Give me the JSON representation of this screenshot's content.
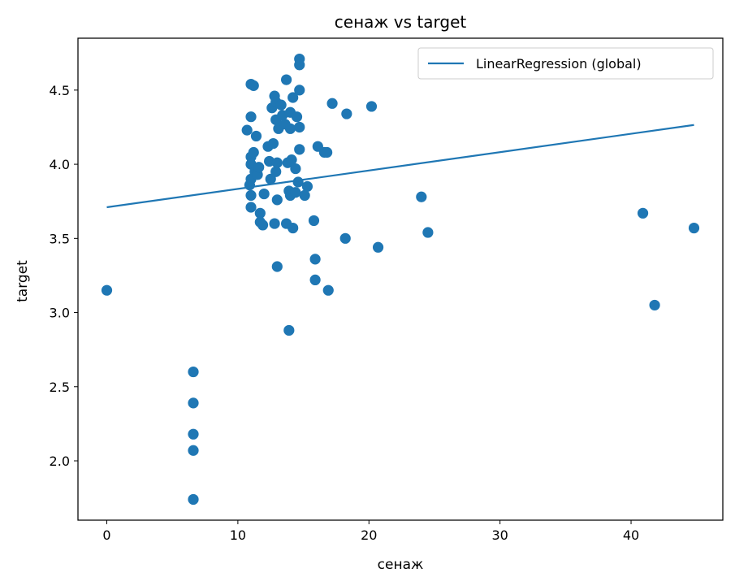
{
  "chart_data": {
    "type": "scatter",
    "title": "сенаж vs target",
    "xlabel": "сенаж",
    "ylabel": "target",
    "xlim": [
      -2.2,
      47.0
    ],
    "ylim": [
      1.6,
      4.85
    ],
    "xticks": [
      0,
      10,
      20,
      30,
      40
    ],
    "yticks": [
      2.0,
      2.5,
      3.0,
      3.5,
      4.0,
      4.5
    ],
    "xtick_labels": [
      "0",
      "10",
      "20",
      "30",
      "40"
    ],
    "ytick_labels": [
      "2.0",
      "2.5",
      "3.0",
      "3.5",
      "4.0",
      "4.5"
    ],
    "grid": false,
    "legend_position": "top-right",
    "color": "#1f77b4",
    "series": [
      {
        "kind": "scatter",
        "points": [
          [
            0,
            3.15
          ],
          [
            6.6,
            2.6
          ],
          [
            6.6,
            2.39
          ],
          [
            6.6,
            2.18
          ],
          [
            6.6,
            2.07
          ],
          [
            6.6,
            1.74
          ],
          [
            10.7,
            4.23
          ],
          [
            10.9,
            3.86
          ],
          [
            11.0,
            4.54
          ],
          [
            11.0,
            4.32
          ],
          [
            11.0,
            4.05
          ],
          [
            11.0,
            4.0
          ],
          [
            11.0,
            3.9
          ],
          [
            11.0,
            3.79
          ],
          [
            11.0,
            3.71
          ],
          [
            11.2,
            4.53
          ],
          [
            11.2,
            4.08
          ],
          [
            11.3,
            3.95
          ],
          [
            11.4,
            4.19
          ],
          [
            11.5,
            3.93
          ],
          [
            11.6,
            3.98
          ],
          [
            11.7,
            3.67
          ],
          [
            11.7,
            3.61
          ],
          [
            11.9,
            3.59
          ],
          [
            12.0,
            3.8
          ],
          [
            12.3,
            4.12
          ],
          [
            12.4,
            4.02
          ],
          [
            12.5,
            3.9
          ],
          [
            12.6,
            4.38
          ],
          [
            12.7,
            4.14
          ],
          [
            12.8,
            4.46
          ],
          [
            12.8,
            3.6
          ],
          [
            12.9,
            4.42
          ],
          [
            12.9,
            4.3
          ],
          [
            12.9,
            3.95
          ],
          [
            13.0,
            4.01
          ],
          [
            13.0,
            3.76
          ],
          [
            13.0,
            3.31
          ],
          [
            13.1,
            4.24
          ],
          [
            13.3,
            4.4
          ],
          [
            13.4,
            4.33
          ],
          [
            13.6,
            4.27
          ],
          [
            13.7,
            4.57
          ],
          [
            13.7,
            3.6
          ],
          [
            13.8,
            4.01
          ],
          [
            13.9,
            3.82
          ],
          [
            13.9,
            2.88
          ],
          [
            14.0,
            4.35
          ],
          [
            14.0,
            4.24
          ],
          [
            14.0,
            3.79
          ],
          [
            14.1,
            4.03
          ],
          [
            14.2,
            4.45
          ],
          [
            14.2,
            3.57
          ],
          [
            14.4,
            3.97
          ],
          [
            14.4,
            3.81
          ],
          [
            14.5,
            4.32
          ],
          [
            14.6,
            3.88
          ],
          [
            14.7,
            4.71
          ],
          [
            14.7,
            4.67
          ],
          [
            14.7,
            4.5
          ],
          [
            14.7,
            4.25
          ],
          [
            14.7,
            4.1
          ],
          [
            15.1,
            3.79
          ],
          [
            15.3,
            3.85
          ],
          [
            15.8,
            3.62
          ],
          [
            15.9,
            3.36
          ],
          [
            15.9,
            3.22
          ],
          [
            16.1,
            4.12
          ],
          [
            16.6,
            4.08
          ],
          [
            16.8,
            4.08
          ],
          [
            16.9,
            3.15
          ],
          [
            17.2,
            4.41
          ],
          [
            18.2,
            3.5
          ],
          [
            18.3,
            4.34
          ],
          [
            20.2,
            4.39
          ],
          [
            20.7,
            3.44
          ],
          [
            24.0,
            3.78
          ],
          [
            24.5,
            3.54
          ],
          [
            40.9,
            3.67
          ],
          [
            41.8,
            3.05
          ],
          [
            44.8,
            3.57
          ]
        ]
      },
      {
        "kind": "line",
        "name": "LinearRegression (global)",
        "points": [
          [
            0,
            3.71
          ],
          [
            44.8,
            4.265
          ]
        ]
      }
    ]
  }
}
